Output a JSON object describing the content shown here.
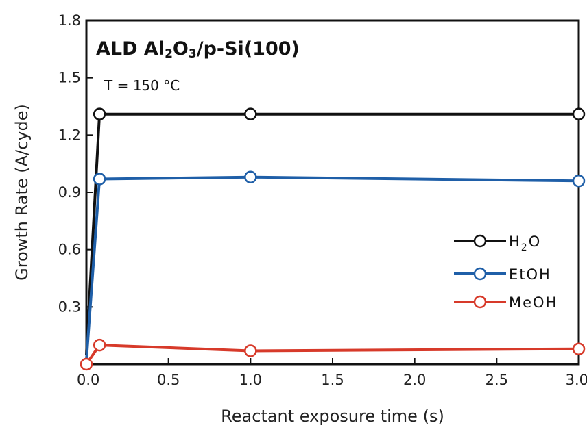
{
  "chart_data": {
    "type": "line",
    "title": "ALD Al2O3/p-Si(100)",
    "annotation": "T = 150 °C",
    "xlabel": "Reactant exposure time (s)",
    "ylabel": "Growth Rate (A/cyde)",
    "xlim": [
      0,
      3.0
    ],
    "ylim": [
      0,
      1.8
    ],
    "x_ticks": [
      "0.0",
      "0.5",
      "1.0",
      "1.5",
      "2.0",
      "2.5",
      "3.0"
    ],
    "y_ticks": [
      "0.3",
      "0.6",
      "0.9",
      "1.2",
      "1.5",
      "1.8"
    ],
    "legend_position": "right",
    "series": [
      {
        "name": "H2O",
        "color": "#111111",
        "x": [
          0.0,
          0.08,
          1.0,
          3.0
        ],
        "y": [
          0.05,
          1.31,
          1.31,
          1.31
        ],
        "markers": [
          false,
          true,
          true,
          true
        ]
      },
      {
        "name": "EtOH",
        "color": "#1f5fa8",
        "x": [
          0.0,
          0.08,
          1.0,
          2.0,
          3.0
        ],
        "y": [
          0.02,
          0.97,
          0.98,
          0.97,
          0.96
        ],
        "markers": [
          false,
          true,
          true,
          false,
          true
        ]
      },
      {
        "name": "MeOH",
        "color": "#d73a2a",
        "x": [
          0.0,
          0.08,
          1.0,
          3.0
        ],
        "y": [
          0.0,
          0.1,
          0.07,
          0.08
        ],
        "markers": [
          true,
          true,
          true,
          true
        ]
      }
    ]
  }
}
